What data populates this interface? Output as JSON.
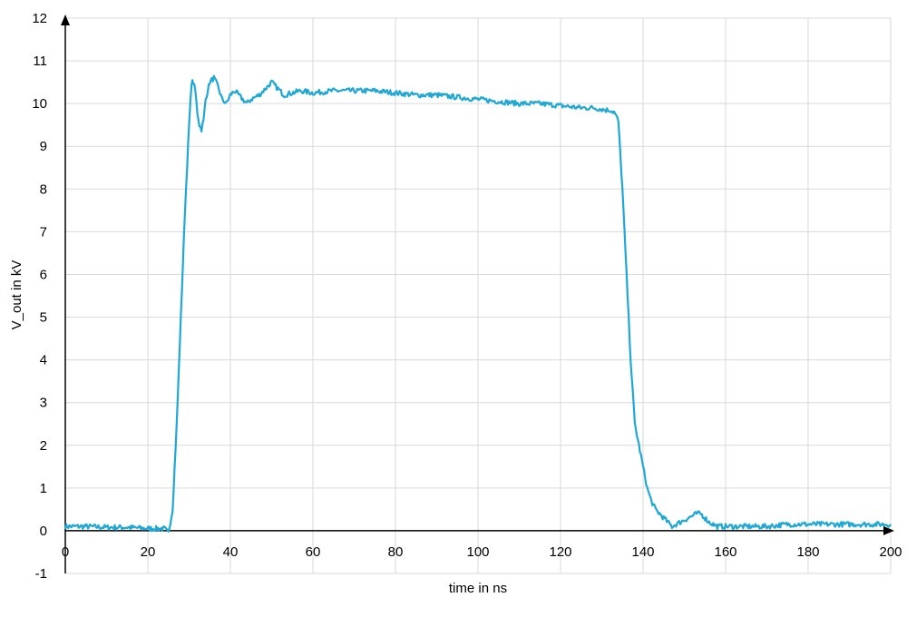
{
  "chart_data": {
    "type": "line",
    "title": "",
    "xlabel": "time in ns",
    "ylabel": "V_out in kV",
    "xlim": [
      0,
      200
    ],
    "ylim": [
      -1,
      12
    ],
    "xticks": [
      0,
      20,
      40,
      60,
      80,
      100,
      120,
      140,
      160,
      180,
      200
    ],
    "yticks": [
      -1,
      0,
      1,
      2,
      3,
      4,
      5,
      6,
      7,
      8,
      9,
      10,
      11,
      12
    ],
    "grid": true,
    "legend": "none",
    "line_color": "#1fa8d6",
    "series": [
      {
        "x": [
          0,
          5,
          10,
          15,
          20,
          24,
          25,
          26,
          27,
          28,
          29,
          30,
          30.6,
          31,
          31.5,
          32,
          32.5,
          33,
          33.5,
          34,
          35,
          36,
          37,
          38,
          39,
          40,
          41,
          42,
          43,
          44,
          45,
          46,
          47,
          48,
          49,
          50,
          51,
          52,
          53,
          55,
          57,
          60,
          65,
          70,
          75,
          80,
          85,
          90,
          95,
          100,
          105,
          110,
          115,
          120,
          125,
          128,
          131,
          132,
          133,
          134,
          135,
          136,
          137,
          138,
          139,
          140,
          141,
          142,
          143,
          144,
          145,
          146,
          147,
          148,
          150,
          152,
          153,
          154,
          155,
          156,
          158,
          160,
          165,
          170,
          175,
          180,
          185,
          190,
          195,
          200
        ],
        "y": [
          0.1,
          0.1,
          0.08,
          0.08,
          0.05,
          0.05,
          -0.05,
          0.5,
          2.5,
          5.0,
          7.5,
          9.5,
          10.5,
          10.5,
          10.3,
          9.8,
          9.5,
          9.4,
          9.6,
          10.1,
          10.5,
          10.6,
          10.4,
          10.1,
          10.0,
          10.2,
          10.3,
          10.2,
          10.1,
          10.0,
          10.1,
          10.15,
          10.2,
          10.3,
          10.4,
          10.5,
          10.4,
          10.3,
          10.2,
          10.25,
          10.3,
          10.25,
          10.3,
          10.3,
          10.3,
          10.25,
          10.2,
          10.2,
          10.15,
          10.1,
          10.05,
          10.0,
          10.0,
          9.95,
          9.9,
          9.9,
          9.85,
          9.85,
          9.8,
          9.6,
          8.0,
          6.0,
          4.0,
          2.5,
          2.0,
          1.5,
          1.0,
          0.7,
          0.5,
          0.4,
          0.3,
          0.2,
          0.1,
          0.15,
          0.25,
          0.35,
          0.4,
          0.4,
          0.3,
          0.2,
          0.1,
          0.1,
          0.1,
          0.1,
          0.15,
          0.15,
          0.15,
          0.15,
          0.15,
          0.15
        ]
      }
    ]
  }
}
